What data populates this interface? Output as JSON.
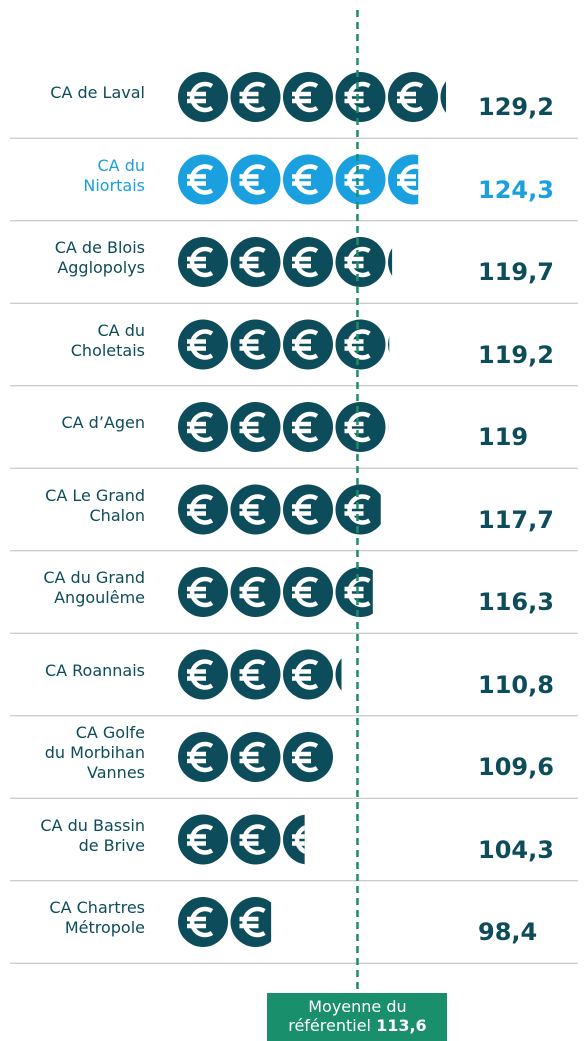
{
  "chart_data": {
    "type": "pictogram",
    "categories": [
      "CA de Laval",
      "CA du\nNiortais",
      "CA de Blois\nAgglopolys",
      "CA du\nCholetais",
      "CA d’Agen",
      "CA Le Grand\nChalon",
      "CA du Grand\nAngoulême",
      "CA Roannais",
      "CA Golfe\ndu Morbihan\nVannes",
      "CA du Bassin\nde Brive",
      "CA Chartres\nMétropole"
    ],
    "values": [
      129.2,
      124.3,
      119.7,
      119.2,
      119,
      117.7,
      116.3,
      110.8,
      109.6,
      104.3,
      98.4
    ],
    "value_labels": [
      "129,2",
      "124,3",
      "119,7",
      "119,2",
      "119",
      "117,7",
      "116,3",
      "110,8",
      "109,6",
      "104,3",
      "98,4"
    ],
    "color": "#0d4c5a",
    "highlight": 1,
    "highlight_color": "#1aa0df",
    "xlim": [
      82,
      135
    ],
    "average": 113.6,
    "average_text": "Moyenne du\nréférentiel",
    "average_label": "113,6",
    "average_color": "#1a8f6b"
  }
}
